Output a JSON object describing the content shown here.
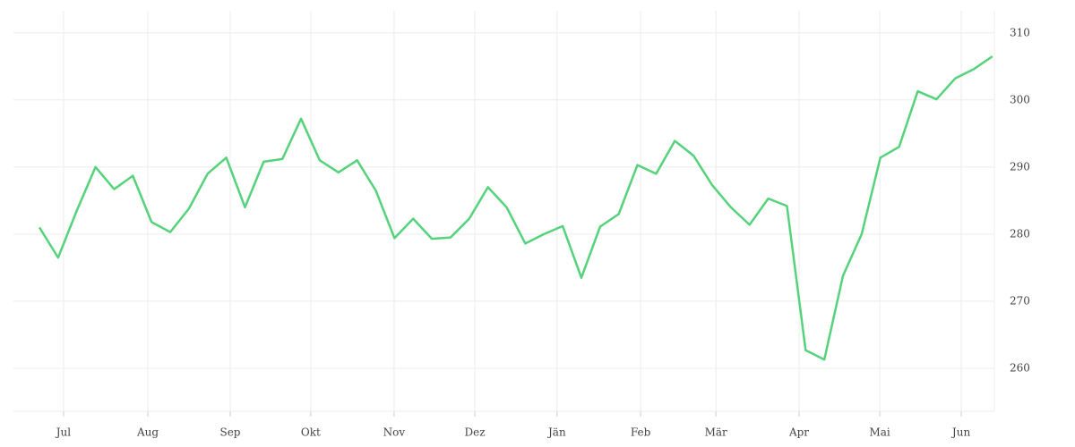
{
  "chart_data": {
    "type": "line",
    "x": [
      0,
      1,
      2,
      3,
      4,
      5,
      6,
      7,
      8,
      9,
      10,
      11,
      12,
      13,
      14,
      15,
      16,
      17,
      18,
      19,
      20,
      21,
      22,
      23,
      24,
      25,
      26,
      27,
      28,
      29,
      30,
      31,
      32,
      33,
      34,
      35,
      36,
      37,
      38,
      39,
      40,
      41,
      42,
      43,
      44,
      45,
      46,
      47,
      48,
      49,
      50,
      51
    ],
    "series": [
      {
        "color": "#55d27b",
        "values": [
          281,
          276.5,
          283.5,
          290,
          286.7,
          288.7,
          281.8,
          280.3,
          283.8,
          289,
          291.4,
          284,
          290.8,
          291.2,
          297.2,
          291,
          289.2,
          291,
          286.5,
          279.4,
          282.3,
          279.3,
          279.5,
          282.3,
          287,
          284,
          278.6,
          280,
          281.2,
          273.5,
          281.1,
          283,
          290.3,
          289,
          293.9,
          291.7,
          287.3,
          284,
          281.4,
          285.3,
          284.2,
          262.7,
          261.3,
          273.8,
          280,
          291.4,
          293,
          301.3,
          300.1,
          303.2,
          304.6,
          306.5
        ]
      }
    ],
    "xlim": [
      -1.39,
      51.1
    ],
    "xticks": [
      {
        "value": 1.29,
        "label": "Jul"
      },
      {
        "value": 5.8,
        "label": "Aug"
      },
      {
        "value": 10.21,
        "label": "Sep"
      },
      {
        "value": 14.52,
        "label": "Okt"
      },
      {
        "value": 18.98,
        "label": "Nov"
      },
      {
        "value": 23.3,
        "label": "Dez"
      },
      {
        "value": 27.7,
        "label": "Jän"
      },
      {
        "value": 32.17,
        "label": "Feb"
      },
      {
        "value": 36.2,
        "label": "Mär"
      },
      {
        "value": 40.65,
        "label": "Apr"
      },
      {
        "value": 44.97,
        "label": "Mai"
      },
      {
        "value": 49.33,
        "label": "Jun"
      }
    ],
    "ylim": [
      253.6,
      313.3
    ],
    "yticks": [
      260,
      270,
      280,
      290,
      300,
      310
    ],
    "grid": true
  }
}
